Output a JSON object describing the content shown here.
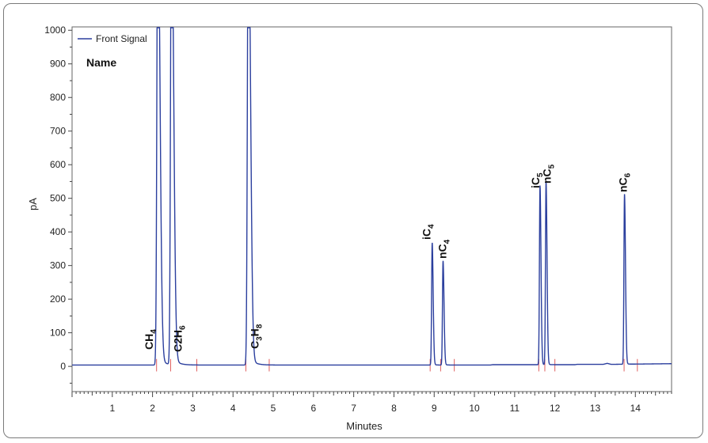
{
  "chart_data": {
    "type": "line",
    "title": "",
    "xlabel": "Minutes",
    "ylabel": "pA",
    "xlim": [
      0,
      14.9
    ],
    "ylim": [
      -75,
      1010
    ],
    "x_ticks": [
      1,
      2,
      3,
      4,
      5,
      6,
      7,
      8,
      9,
      10,
      11,
      12,
      13,
      14
    ],
    "y_ticks": [
      0,
      100,
      200,
      300,
      400,
      500,
      600,
      700,
      800,
      900,
      1000
    ],
    "legend": {
      "placement": "top-left",
      "entries": [
        "Front Signal"
      ]
    },
    "name_label": "Name",
    "grid": false,
    "colors": {
      "signal": "#2b3f9e",
      "markers": "#e06060",
      "frame": "#7a7a7a"
    },
    "series": [
      {
        "name": "Front Signal",
        "peaks": [
          {
            "rt": 2.13,
            "height": 1010,
            "label_main": "CH",
            "label_sub": "4",
            "label_post": ""
          },
          {
            "rt": 2.47,
            "height": 1010,
            "label_main": "C2H",
            "label_sub": "6",
            "label_post": ""
          },
          {
            "rt": 4.38,
            "height": 1010,
            "label_main": "C",
            "label_sub": "3",
            "label_post": "H",
            "label_sub2": "8"
          },
          {
            "rt": 8.95,
            "height": 362,
            "label_main": "iC",
            "label_sub": "4",
            "label_post": ""
          },
          {
            "rt": 9.22,
            "height": 308,
            "label_main": "nC",
            "label_sub": "4",
            "label_post": ""
          },
          {
            "rt": 11.63,
            "height": 530,
            "label_main": "iC",
            "label_sub": "5",
            "label_post": ""
          },
          {
            "rt": 11.78,
            "height": 542,
            "label_main": "nC",
            "label_sub": "5",
            "label_post": ""
          },
          {
            "rt": 13.73,
            "height": 503,
            "label_main": "nC",
            "label_sub": "6",
            "label_post": ""
          }
        ],
        "baseline": [
          [
            0,
            4
          ],
          [
            10.4,
            4
          ],
          [
            10.45,
            5
          ],
          [
            12.5,
            5
          ],
          [
            12.55,
            6
          ],
          [
            13.2,
            6
          ],
          [
            13.3,
            9
          ],
          [
            13.4,
            6
          ],
          [
            14.9,
            8
          ]
        ]
      }
    ],
    "integration_markers": [
      2.1,
      2.45,
      3.1,
      4.32,
      4.9,
      8.9,
      9.16,
      9.5,
      11.6,
      11.75,
      12.0,
      13.72,
      14.05
    ]
  }
}
